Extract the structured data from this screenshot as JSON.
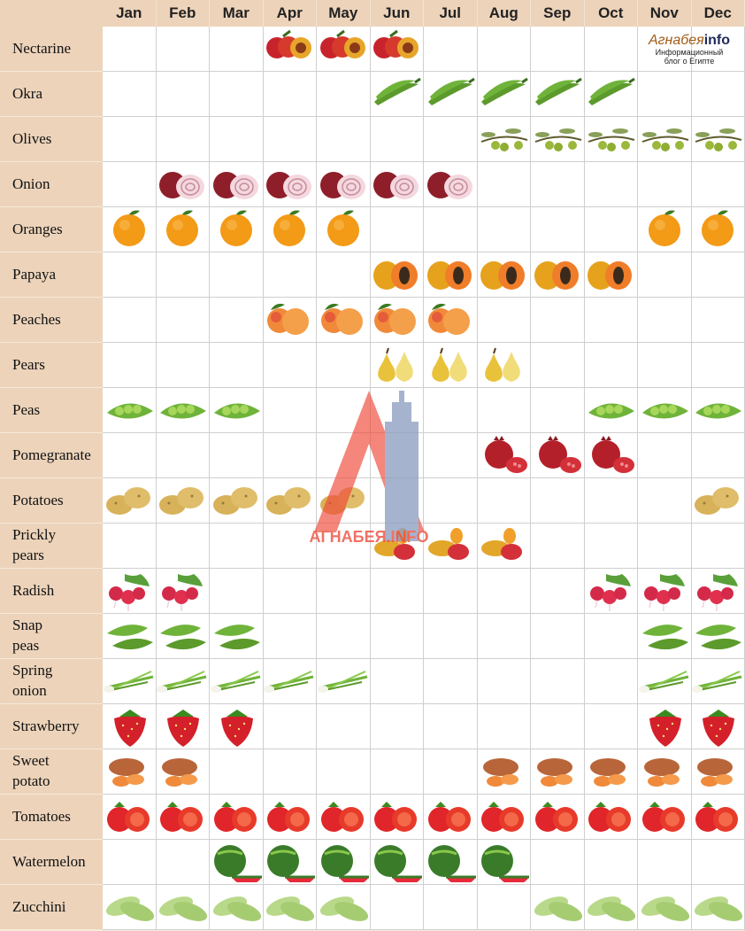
{
  "months": [
    "Jan",
    "Feb",
    "Mar",
    "Apr",
    "May",
    "Jun",
    "Jul",
    "Aug",
    "Sep",
    "Oct",
    "Nov",
    "Dec"
  ],
  "rows": [
    {
      "name": "Nectarine",
      "icon": "nectarine-icon",
      "months": [
        4,
        5,
        6
      ]
    },
    {
      "name": "Okra",
      "icon": "okra-icon",
      "months": [
        6,
        7,
        8,
        9,
        10
      ]
    },
    {
      "name": "Olives",
      "icon": "olives-icon",
      "months": [
        8,
        9,
        10,
        11,
        12
      ]
    },
    {
      "name": "Onion",
      "icon": "onion-icon",
      "months": [
        2,
        3,
        4,
        5,
        6,
        7
      ]
    },
    {
      "name": "Oranges",
      "icon": "orange-icon",
      "months": [
        1,
        2,
        3,
        4,
        5,
        11,
        12
      ]
    },
    {
      "name": "Papaya",
      "icon": "papaya-icon",
      "months": [
        6,
        7,
        8,
        9,
        10
      ]
    },
    {
      "name": "Peaches",
      "icon": "peach-icon",
      "months": [
        4,
        5,
        6,
        7
      ]
    },
    {
      "name": "Pears",
      "icon": "pear-icon",
      "months": [
        6,
        7,
        8
      ]
    },
    {
      "name": "Peas",
      "icon": "peas-icon",
      "months": [
        1,
        2,
        3,
        10,
        11,
        12
      ]
    },
    {
      "name": "Pomegranate",
      "icon": "pomegranate-icon",
      "months": [
        8,
        9,
        10
      ]
    },
    {
      "name": "Potatoes",
      "icon": "potato-icon",
      "months": [
        1,
        2,
        3,
        4,
        5,
        12
      ]
    },
    {
      "name": "Prickly\npears",
      "icon": "prickly-pear-icon",
      "months": [
        6,
        7,
        8
      ]
    },
    {
      "name": "Radish",
      "icon": "radish-icon",
      "months": [
        1,
        2,
        10,
        11,
        12
      ]
    },
    {
      "name": "Snap\npeas",
      "icon": "snap-peas-icon",
      "months": [
        1,
        2,
        3,
        11,
        12
      ]
    },
    {
      "name": "Spring\nonion",
      "icon": "spring-onion-icon",
      "months": [
        1,
        2,
        3,
        4,
        5,
        11,
        12
      ]
    },
    {
      "name": "Strawberry",
      "icon": "strawberry-icon",
      "months": [
        1,
        2,
        3,
        11,
        12
      ]
    },
    {
      "name": "Sweet\npotato",
      "icon": "sweet-potato-icon",
      "months": [
        1,
        2,
        8,
        9,
        10,
        11,
        12
      ]
    },
    {
      "name": "Tomatoes",
      "icon": "tomato-icon",
      "months": [
        1,
        2,
        3,
        4,
        5,
        6,
        7,
        8,
        9,
        10,
        11,
        12
      ]
    },
    {
      "name": "Watermelon",
      "icon": "watermelon-icon",
      "months": [
        3,
        4,
        5,
        6,
        7,
        8
      ]
    },
    {
      "name": "Zucchini",
      "icon": "zucchini-icon",
      "months": [
        1,
        2,
        3,
        4,
        5,
        9,
        10,
        11,
        12
      ]
    }
  ],
  "logo": {
    "brand_part1": "Агнабея",
    "brand_part2": "info",
    "tagline_line1": "Информационный",
    "tagline_line2": "блог о Египте"
  },
  "watermark": {
    "text": "АГНАБЕЯ.INFO"
  }
}
